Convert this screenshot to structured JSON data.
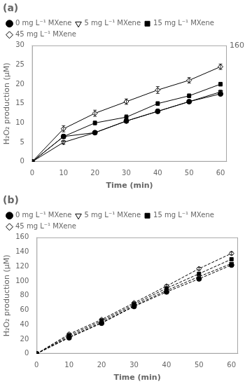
{
  "chart_data": [
    {
      "type": "line",
      "title": "(a)",
      "xlabel": "Time (min)",
      "ylabel": "H₂O₂ production (μM)",
      "x": [
        0,
        10,
        20,
        30,
        40,
        50,
        60
      ],
      "xlim": [
        0,
        62
      ],
      "xticks": [
        0,
        10,
        20,
        30,
        40,
        50,
        60
      ],
      "ylim": [
        0,
        30
      ],
      "yticks": [
        0,
        5,
        10,
        15,
        20,
        25,
        30
      ],
      "grid": false,
      "legend": "upper left",
      "annotations": [
        "160"
      ],
      "series": [
        {
          "name": "0 mg L⁻¹ MXene",
          "color": "black",
          "marker": "filled_circle",
          "line_style": "solid",
          "values": [
            0,
            6.5,
            7.5,
            10.5,
            13.0,
            15.5,
            17.5
          ],
          "yerr": [
            0,
            0.5,
            0.4,
            0.5,
            0.5,
            0.4,
            0.5
          ]
        },
        {
          "name": "5 mg L⁻¹ MXene",
          "color": "black",
          "marker": "open_triangle_down",
          "line_style": "solid",
          "values": [
            0,
            5.0,
            7.5,
            10.5,
            13.0,
            15.5,
            18.0
          ],
          "yerr": [
            0,
            0.5,
            0.4,
            0.5,
            0.5,
            0.4,
            0.5
          ]
        },
        {
          "name": "15 mg L⁻¹ MXene",
          "color": "black",
          "marker": "filled_square",
          "line_style": "solid",
          "values": [
            0,
            6.5,
            10.0,
            11.5,
            15.0,
            17.0,
            20.0
          ],
          "yerr": [
            0,
            0.5,
            0.5,
            0.6,
            0.5,
            0.5,
            0.5
          ]
        },
        {
          "name": "45 mg L⁻¹ MXene",
          "color": "black",
          "marker": "open_diamond",
          "line_style": "solid",
          "values": [
            0,
            8.5,
            12.5,
            15.5,
            18.5,
            21.0,
            24.5
          ],
          "yerr": [
            0,
            0.8,
            0.8,
            0.7,
            0.9,
            0.7,
            0.7
          ]
        }
      ]
    },
    {
      "type": "line",
      "title": "(b)",
      "xlabel": "Time (min)",
      "ylabel": "H₂O₂ production (μM)",
      "x": [
        0,
        10,
        20,
        30,
        40,
        50,
        60
      ],
      "xlim": [
        0,
        62
      ],
      "xticks": [
        0,
        10,
        20,
        30,
        40,
        50,
        60
      ],
      "ylim": [
        0,
        160
      ],
      "yticks": [
        0,
        20,
        40,
        60,
        80,
        100,
        120,
        140,
        160
      ],
      "grid": false,
      "legend": "upper left",
      "series": [
        {
          "name": "0 mg L⁻¹ MXene",
          "color": "black",
          "marker": "filled_circle",
          "line_style": "dashed",
          "values": [
            0,
            22.0,
            42.0,
            65.0,
            85.0,
            103.0,
            122.0
          ],
          "yerr": [
            0,
            1.0,
            1.2,
            1.2,
            1.5,
            1.5,
            1.5
          ]
        },
        {
          "name": "5 mg L⁻¹ MXene",
          "color": "black",
          "marker": "open_triangle_down",
          "line_style": "dashed",
          "values": [
            0,
            23.0,
            43.0,
            66.0,
            87.0,
            106.0,
            124.0
          ],
          "yerr": [
            0,
            1.0,
            1.2,
            1.2,
            1.5,
            1.5,
            1.5
          ]
        },
        {
          "name": "15 mg L⁻¹ MXene",
          "color": "black",
          "marker": "filled_square",
          "line_style": "dashed",
          "values": [
            0,
            25.0,
            45.0,
            68.0,
            90.0,
            110.0,
            130.0
          ],
          "yerr": [
            0,
            1.0,
            1.2,
            1.2,
            1.5,
            1.5,
            1.5
          ]
        },
        {
          "name": "45 mg L⁻¹ MXene",
          "color": "black",
          "marker": "open_diamond",
          "line_style": "dashed",
          "values": [
            0,
            27.0,
            47.0,
            70.0,
            93.0,
            117.0,
            138.0
          ],
          "yerr": [
            0,
            1.5,
            1.5,
            1.5,
            1.8,
            1.8,
            2.0
          ]
        }
      ]
    }
  ]
}
